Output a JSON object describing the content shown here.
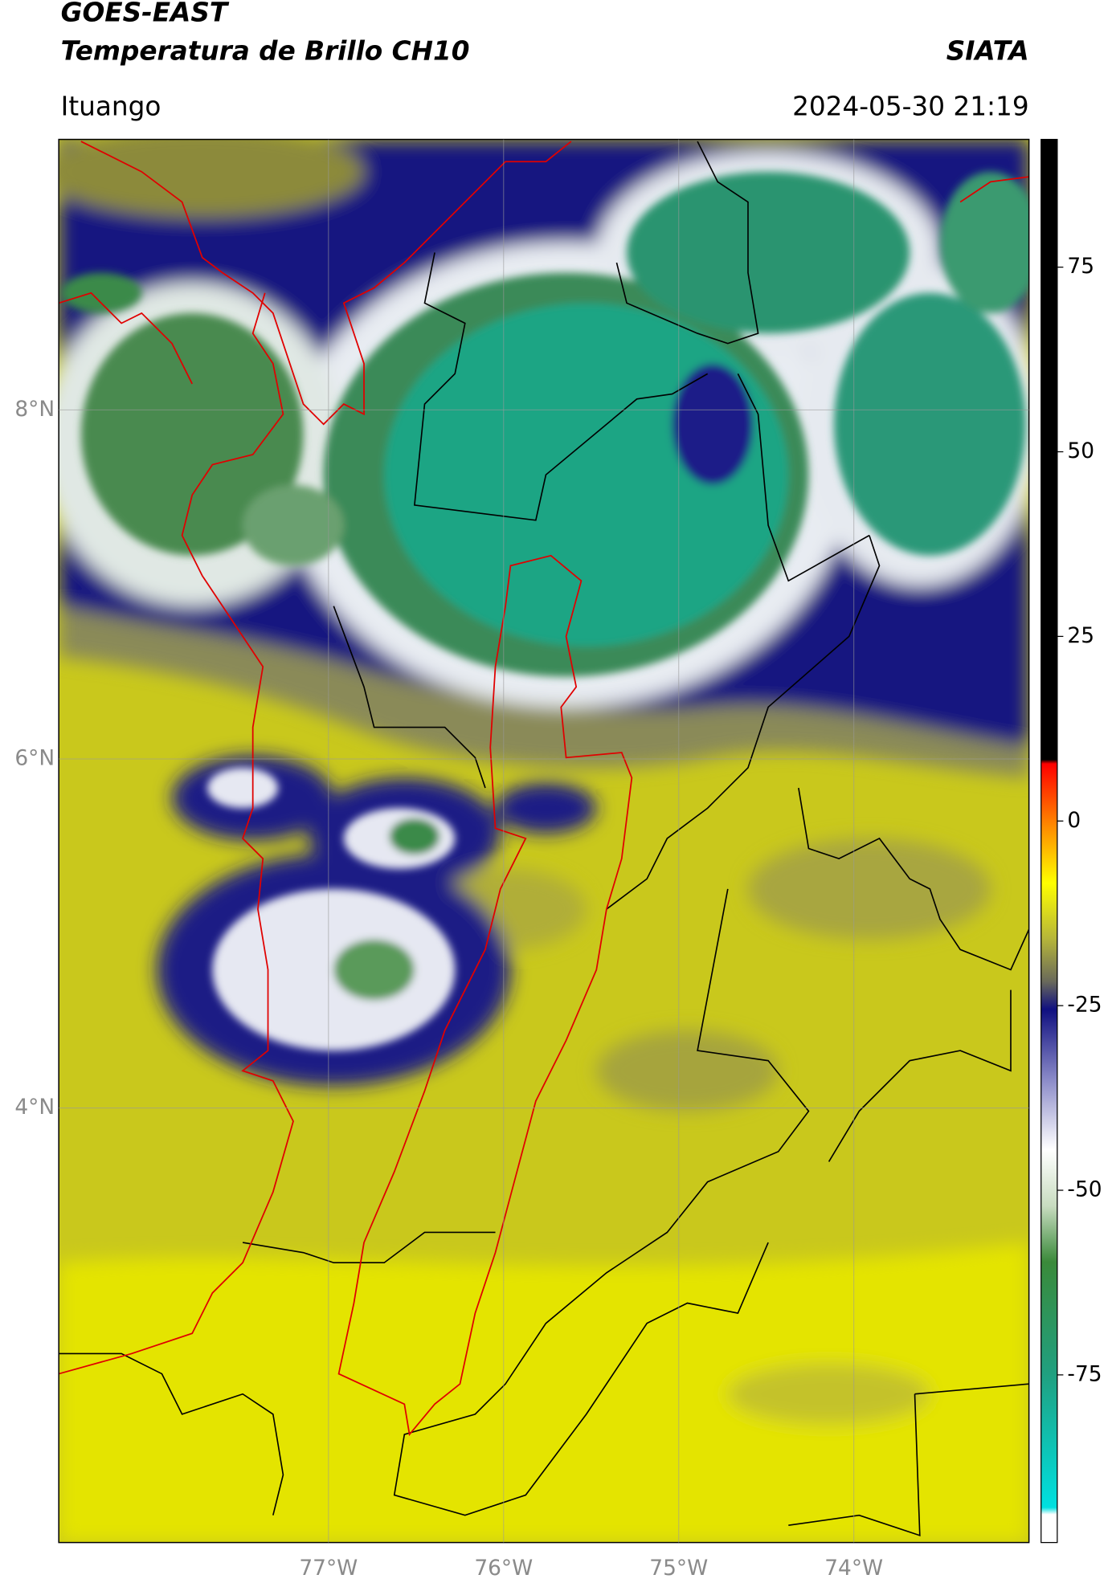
{
  "header": {
    "title": "GOES-EAST",
    "subtitle": "Temperatura de Brillo CH10",
    "source": "SIATA",
    "location": "Ituango",
    "datetime": "2024-05-30 21:19"
  },
  "map": {
    "latlim": [
      1.51,
      9.55
    ],
    "lonlim": [
      -78.54,
      -73.0
    ],
    "grid": true,
    "latticks": [
      {
        "value": 8,
        "label": "8°N"
      },
      {
        "value": 6,
        "label": "6°N"
      },
      {
        "value": 4,
        "label": "4°N"
      }
    ],
    "lonticks": [
      {
        "value": -77,
        "label": "77°W"
      },
      {
        "value": -76,
        "label": "76°W"
      },
      {
        "value": -75,
        "label": "75°W"
      },
      {
        "value": -74,
        "label": "74°W"
      }
    ]
  },
  "colorbar": {
    "lim": [
      -97.7,
      92.3
    ],
    "ticks": [
      75,
      50,
      25,
      0,
      -25,
      -50,
      -75
    ]
  }
}
